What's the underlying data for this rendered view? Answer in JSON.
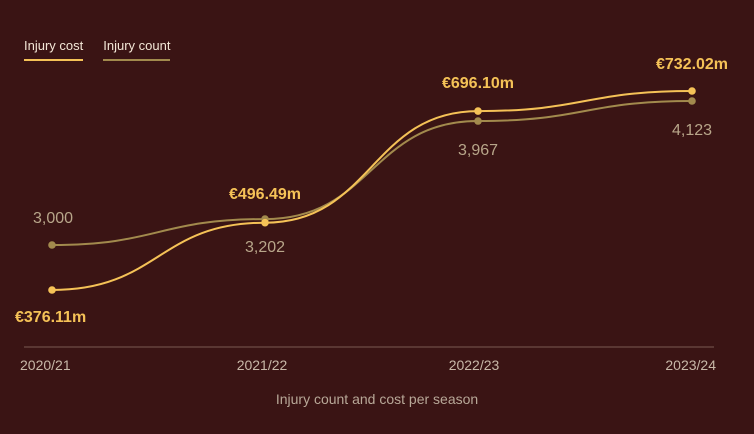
{
  "legend": [
    {
      "label": "Injury cost",
      "color": "#f5c257"
    },
    {
      "label": "Injury count",
      "color": "#a28a4d"
    }
  ],
  "caption": "Injury count and cost per season",
  "chart_data": {
    "type": "line",
    "categories": [
      "2020/21",
      "2021/22",
      "2022/23",
      "2023/24"
    ],
    "series": [
      {
        "name": "Injury cost",
        "unit": "€m",
        "values": [
          376.11,
          496.49,
          696.1,
          732.02
        ],
        "labels": [
          "€376.11m",
          "€496.49m",
          "€696.10m",
          "€732.02m"
        ],
        "color": "#f5c257"
      },
      {
        "name": "Injury count",
        "values": [
          3000,
          3202,
          3967,
          4123
        ],
        "labels": [
          "3,000",
          "3,202",
          "3,967",
          "4,123"
        ],
        "color": "#a28a4d"
      }
    ],
    "grid": false,
    "legend_position": "top-left",
    "label_color_cost": "#f5c257",
    "label_color_count": "#b8a68a",
    "axis_color": "#7a5a52",
    "tick_color": "#c8b8a8"
  }
}
